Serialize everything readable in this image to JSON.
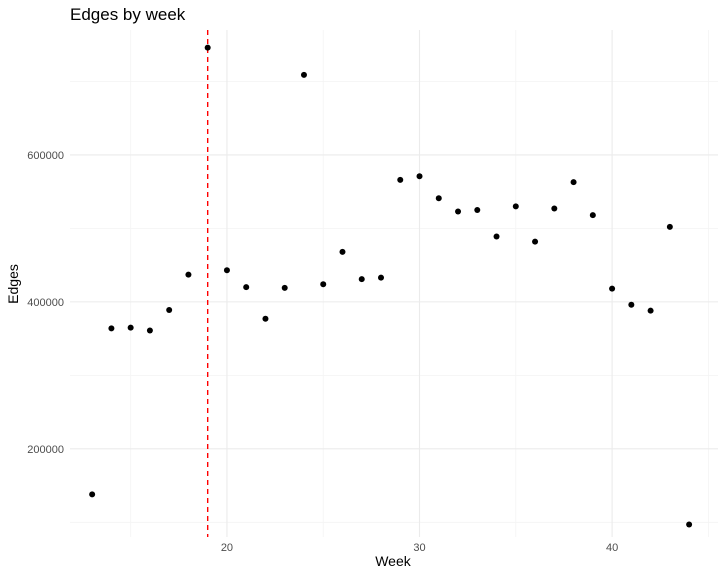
{
  "chart_data": {
    "type": "scatter",
    "title": "Edges by week",
    "xlabel": "Week",
    "ylabel": "Edges",
    "xlim": [
      11.85,
      45.5
    ],
    "ylim": [
      80000,
      770000
    ],
    "x_ticks": [
      20,
      30,
      40
    ],
    "y_ticks": [
      200000,
      400000,
      600000
    ],
    "x_minor_ticks": [
      15,
      25,
      35,
      45
    ],
    "y_minor_ticks": [
      100000,
      300000,
      500000,
      700000
    ],
    "grid": true,
    "marker_color": "#000000",
    "reference_line": {
      "x": 19,
      "color": "#ff0000",
      "style": "dashed"
    },
    "points": [
      {
        "x": 13,
        "y": 138000
      },
      {
        "x": 14,
        "y": 364000
      },
      {
        "x": 15,
        "y": 365000
      },
      {
        "x": 16,
        "y": 361000
      },
      {
        "x": 17,
        "y": 389000
      },
      {
        "x": 18,
        "y": 437000
      },
      {
        "x": 19,
        "y": 746000
      },
      {
        "x": 20,
        "y": 443000
      },
      {
        "x": 21,
        "y": 420000
      },
      {
        "x": 22,
        "y": 377000
      },
      {
        "x": 23,
        "y": 419000
      },
      {
        "x": 24,
        "y": 709000
      },
      {
        "x": 25,
        "y": 424000
      },
      {
        "x": 26,
        "y": 468000
      },
      {
        "x": 27,
        "y": 431000
      },
      {
        "x": 28,
        "y": 433000
      },
      {
        "x": 29,
        "y": 566000
      },
      {
        "x": 30,
        "y": 571000
      },
      {
        "x": 31,
        "y": 541000
      },
      {
        "x": 32,
        "y": 523000
      },
      {
        "x": 33,
        "y": 525000
      },
      {
        "x": 34,
        "y": 489000
      },
      {
        "x": 35,
        "y": 530000
      },
      {
        "x": 36,
        "y": 482000
      },
      {
        "x": 37,
        "y": 527000
      },
      {
        "x": 38,
        "y": 563000
      },
      {
        "x": 39,
        "y": 518000
      },
      {
        "x": 40,
        "y": 418000
      },
      {
        "x": 41,
        "y": 396000
      },
      {
        "x": 42,
        "y": 388000
      },
      {
        "x": 43,
        "y": 502000
      },
      {
        "x": 44,
        "y": 97000
      }
    ]
  }
}
